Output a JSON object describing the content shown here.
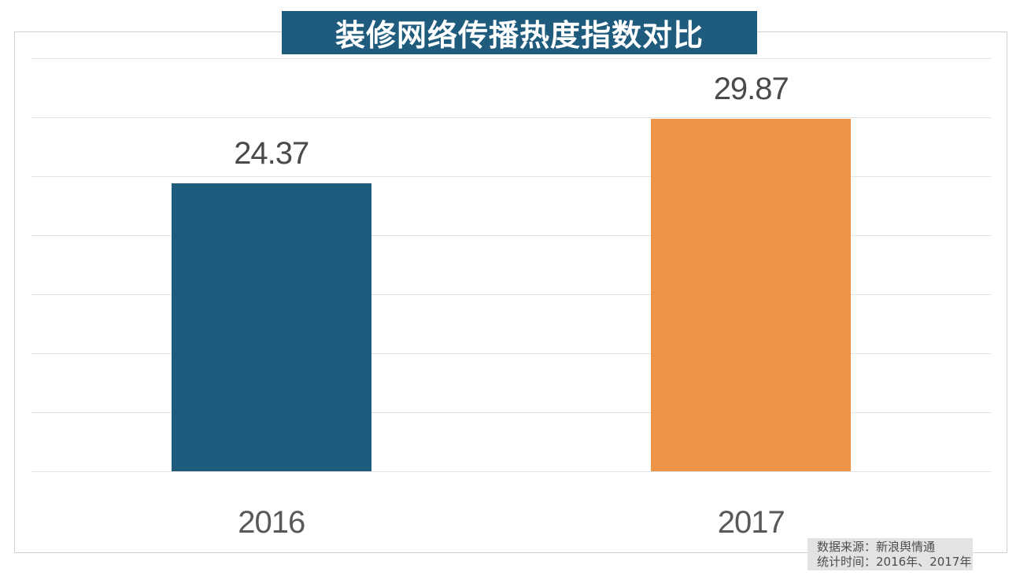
{
  "title": "装修网络传播热度指数对比",
  "source_note": {
    "line1": "数据来源：新浪舆情通",
    "line2": "统计时间：2016年、2017年"
  },
  "chart_data": {
    "type": "bar",
    "categories": [
      "2016",
      "2017"
    ],
    "values": [
      24.37,
      29.87
    ],
    "value_labels": [
      "24.37",
      "29.87"
    ],
    "title": "装修网络传播热度指数对比",
    "xlabel": "",
    "ylabel": "",
    "ylim": [
      0,
      35
    ],
    "grid_step": 5,
    "grid": "horizontal-only",
    "legend_position": "none",
    "bar_colors": [
      "#1e5b7d",
      "#ee9347"
    ]
  },
  "colors": {
    "title_bg": "#1e5b7d",
    "title_text": "#ffffff",
    "bar_2016": "#1e5b7d",
    "bar_2017": "#ee9347",
    "gridline": "#e2e2e2",
    "frame_border": "#d0d0d0",
    "value_label": "#4a4a4a",
    "axis_label": "#595959",
    "source_bg": "#e3e3e3",
    "source_text": "#4d4d4d"
  }
}
